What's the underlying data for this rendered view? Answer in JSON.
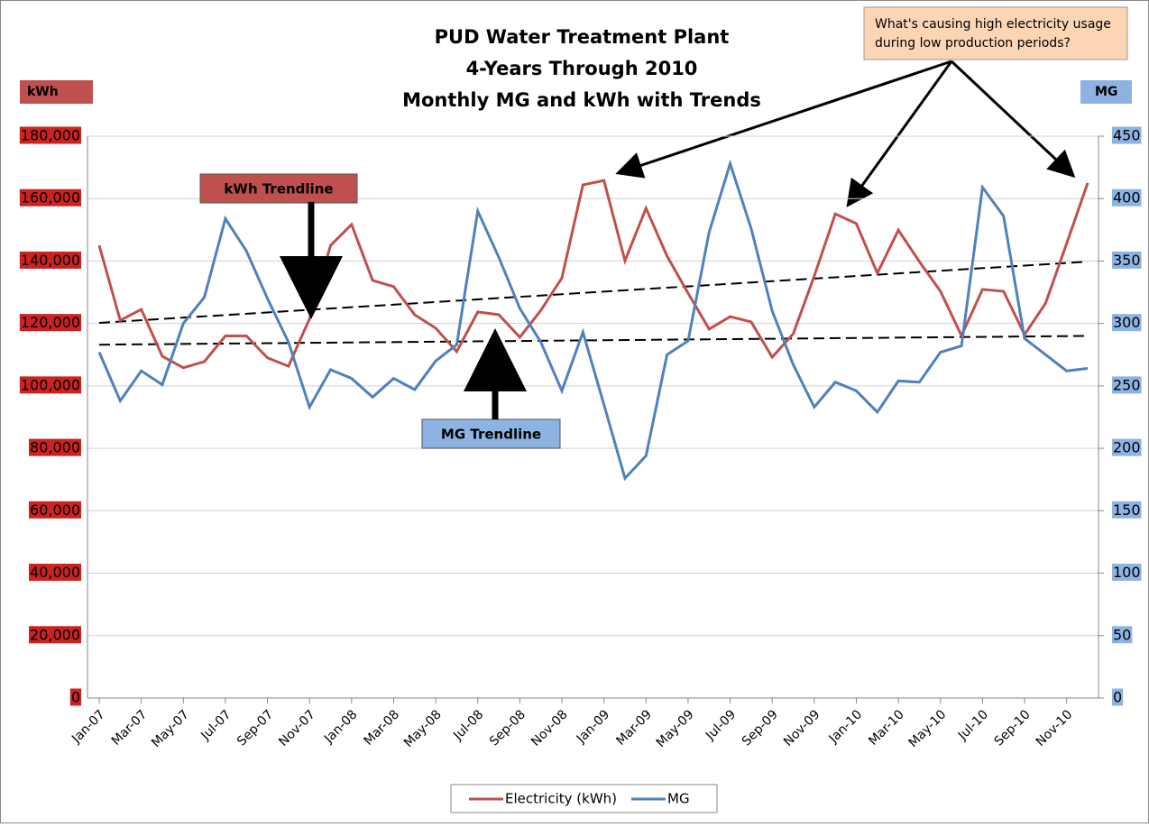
{
  "chart_data": {
    "type": "line",
    "title": [
      "PUD Water Treatment Plant",
      "4-Years Through 2010",
      "Monthly MG and kWh with Trends"
    ],
    "y_label": "kWh",
    "y2_label": "MG",
    "annotation": [
      "What's causing high electricity usage",
      "during low production periods?"
    ],
    "categories": [
      "Jan-07",
      null,
      "Mar-07",
      null,
      "May-07",
      null,
      "Jul-07",
      null,
      "Sep-07",
      null,
      "Nov-07",
      null,
      "Jan-08",
      null,
      "Mar-08",
      null,
      "May-08",
      null,
      "Jul-08",
      null,
      "Sep-08",
      null,
      "Nov-08",
      null,
      "Jan-09",
      null,
      "Mar-09",
      null,
      "May-09",
      null,
      "Jul-09",
      null,
      "Sep-09",
      null,
      "Nov-09",
      null,
      "Jan-10",
      null,
      "Mar-10",
      null,
      "May-10",
      null,
      "Jul-10",
      null,
      "Sep-10",
      null,
      "Nov-10",
      null
    ],
    "series": [
      {
        "name": "Electricity (kWh)",
        "color": "#c0504d",
        "axis": "y",
        "values": [
          145000,
          121000,
          124500,
          109500,
          105800,
          107800,
          116000,
          116000,
          109000,
          106300,
          121500,
          145000,
          151700,
          133800,
          131800,
          122800,
          118500,
          111000,
          123700,
          122800,
          115600,
          124200,
          134600,
          164400,
          165800,
          140100,
          156900,
          141600,
          129700,
          118200,
          122200,
          120500,
          109200,
          116700,
          135200,
          155100,
          152000,
          136100,
          149900,
          139800,
          130300,
          116100,
          130900,
          130300,
          116400,
          126500,
          145600,
          165000
        ]
      },
      {
        "name": "MG",
        "color": "#4f81bd",
        "axis": "y2",
        "values": [
          277,
          238,
          262,
          251,
          300,
          321,
          384,
          358,
          320,
          285,
          233,
          263,
          256,
          241,
          256,
          247,
          270,
          283,
          390,
          353,
          312,
          285,
          246,
          293,
          235,
          176,
          194,
          275,
          286,
          373,
          428,
          376,
          310,
          267,
          233,
          253,
          246,
          229,
          254,
          253,
          277,
          282,
          409,
          386,
          288,
          275,
          262,
          264
        ]
      }
    ],
    "trendlines": [
      {
        "label": "kWh Trendline",
        "axis": "y",
        "values": [
          120200,
          139800
        ],
        "color": "#c0504d"
      },
      {
        "label": "MG Trendline",
        "axis": "y2",
        "values": [
          283,
          290
        ],
        "color": "#8db3e2"
      }
    ],
    "ylim": [
      0,
      180000
    ],
    "yticks": [
      0,
      {
        "value": 20000,
        "label": "20,000"
      },
      {
        "value": 40000,
        "label": "40,000"
      },
      {
        "value": 60000,
        "label": "60,000"
      },
      {
        "value": 80000,
        "label": "80,000"
      },
      {
        "value": 100000,
        "label": "100,000"
      },
      {
        "value": 120000,
        "label": "120,000"
      },
      {
        "value": 140000,
        "label": "140,000"
      },
      {
        "value": 160000,
        "label": "160,000"
      },
      {
        "value": 180000,
        "label": "180,000"
      }
    ],
    "y2lim": [
      0,
      450
    ],
    "y2ticks": [
      0,
      50,
      100,
      150,
      200,
      250,
      300,
      350,
      400,
      450
    ],
    "grid": true,
    "legend": "bottom"
  }
}
